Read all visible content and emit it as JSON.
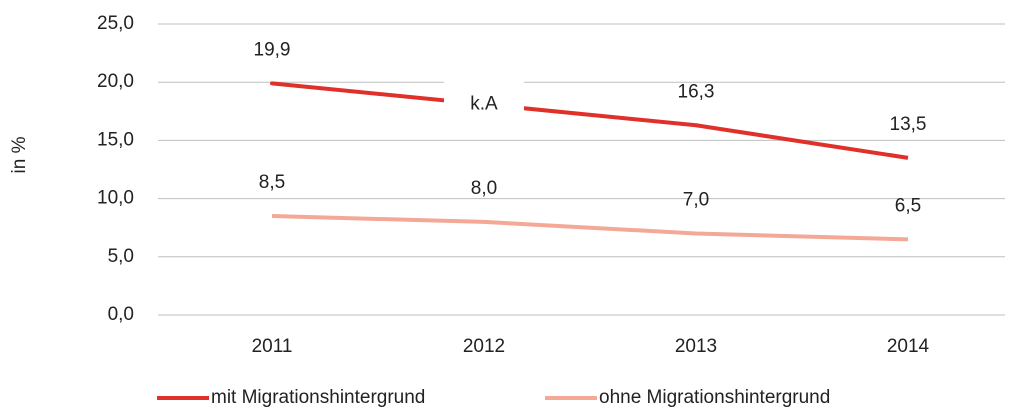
{
  "chart_data": {
    "type": "line",
    "y_label": "in %",
    "categories": [
      "2011",
      "2012",
      "2013",
      "2014"
    ],
    "series": [
      {
        "name": "mit Migrationshintergrund",
        "color": "#e0302a",
        "values": [
          19.9,
          null,
          16.3,
          13.5
        ],
        "value_labels": [
          "19,9",
          "k.A",
          "16,3",
          "13,5"
        ]
      },
      {
        "name": "ohne Migrationshintergrund",
        "color": "#f4a896",
        "values": [
          8.5,
          8.0,
          7.0,
          6.5
        ],
        "value_labels": [
          "8,5",
          "8,0",
          "7,0",
          "6,5"
        ]
      }
    ],
    "ylim": [
      0,
      25
    ],
    "yticks": [
      {
        "value": 0,
        "label": "0,0"
      },
      {
        "value": 5,
        "label": "5,0"
      },
      {
        "value": 10,
        "label": "10,0"
      },
      {
        "value": 15,
        "label": "15,0"
      },
      {
        "value": 20,
        "label": "20,0"
      },
      {
        "value": 25,
        "label": "25,0"
      }
    ],
    "grid": true,
    "legend": "bottom"
  }
}
